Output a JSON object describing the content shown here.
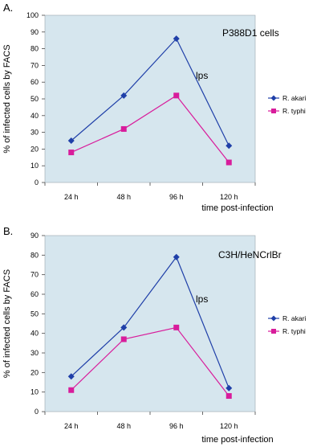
{
  "chart_data": [
    {
      "panel_label": "A.",
      "type": "line",
      "categories": [
        "24 h",
        "48 h",
        "96 h",
        "120 h"
      ],
      "series": [
        {
          "name": "R. akari",
          "values": [
            25,
            52,
            86,
            22
          ],
          "color": "#1f3fa8",
          "marker": "diamond"
        },
        {
          "name": "R. typhi",
          "values": [
            18,
            32,
            52,
            12
          ],
          "color": "#d81c9b",
          "marker": "square"
        }
      ],
      "annotations": [
        "P388D1 cells",
        "lps"
      ],
      "xlabel": "time post-infection",
      "ylabel": "% of infected cells by FACS",
      "ylim": [
        0,
        100
      ],
      "yticks": [
        0,
        10,
        20,
        30,
        40,
        50,
        60,
        70,
        80,
        90,
        100
      ],
      "legend_position": "right",
      "plot_background": "#d6e6ee",
      "grid": false
    },
    {
      "panel_label": "B.",
      "type": "line",
      "categories": [
        "24 h",
        "48 h",
        "96 h",
        "120 h"
      ],
      "series": [
        {
          "name": "R. akari",
          "values": [
            18,
            43,
            79,
            12
          ],
          "color": "#1f3fa8",
          "marker": "diamond"
        },
        {
          "name": "R. typhi",
          "values": [
            11,
            37,
            43,
            8
          ],
          "color": "#d81c9b",
          "marker": "square"
        }
      ],
      "annotations": [
        "C3H/HeNCrlBr",
        "lps"
      ],
      "xlabel": "time post-infection",
      "ylabel": "% of infected cells by FACS",
      "ylim": [
        0,
        90
      ],
      "yticks": [
        0,
        10,
        20,
        30,
        40,
        50,
        60,
        70,
        80,
        90
      ],
      "legend_position": "right",
      "plot_background": "#d6e6ee",
      "grid": false
    }
  ]
}
